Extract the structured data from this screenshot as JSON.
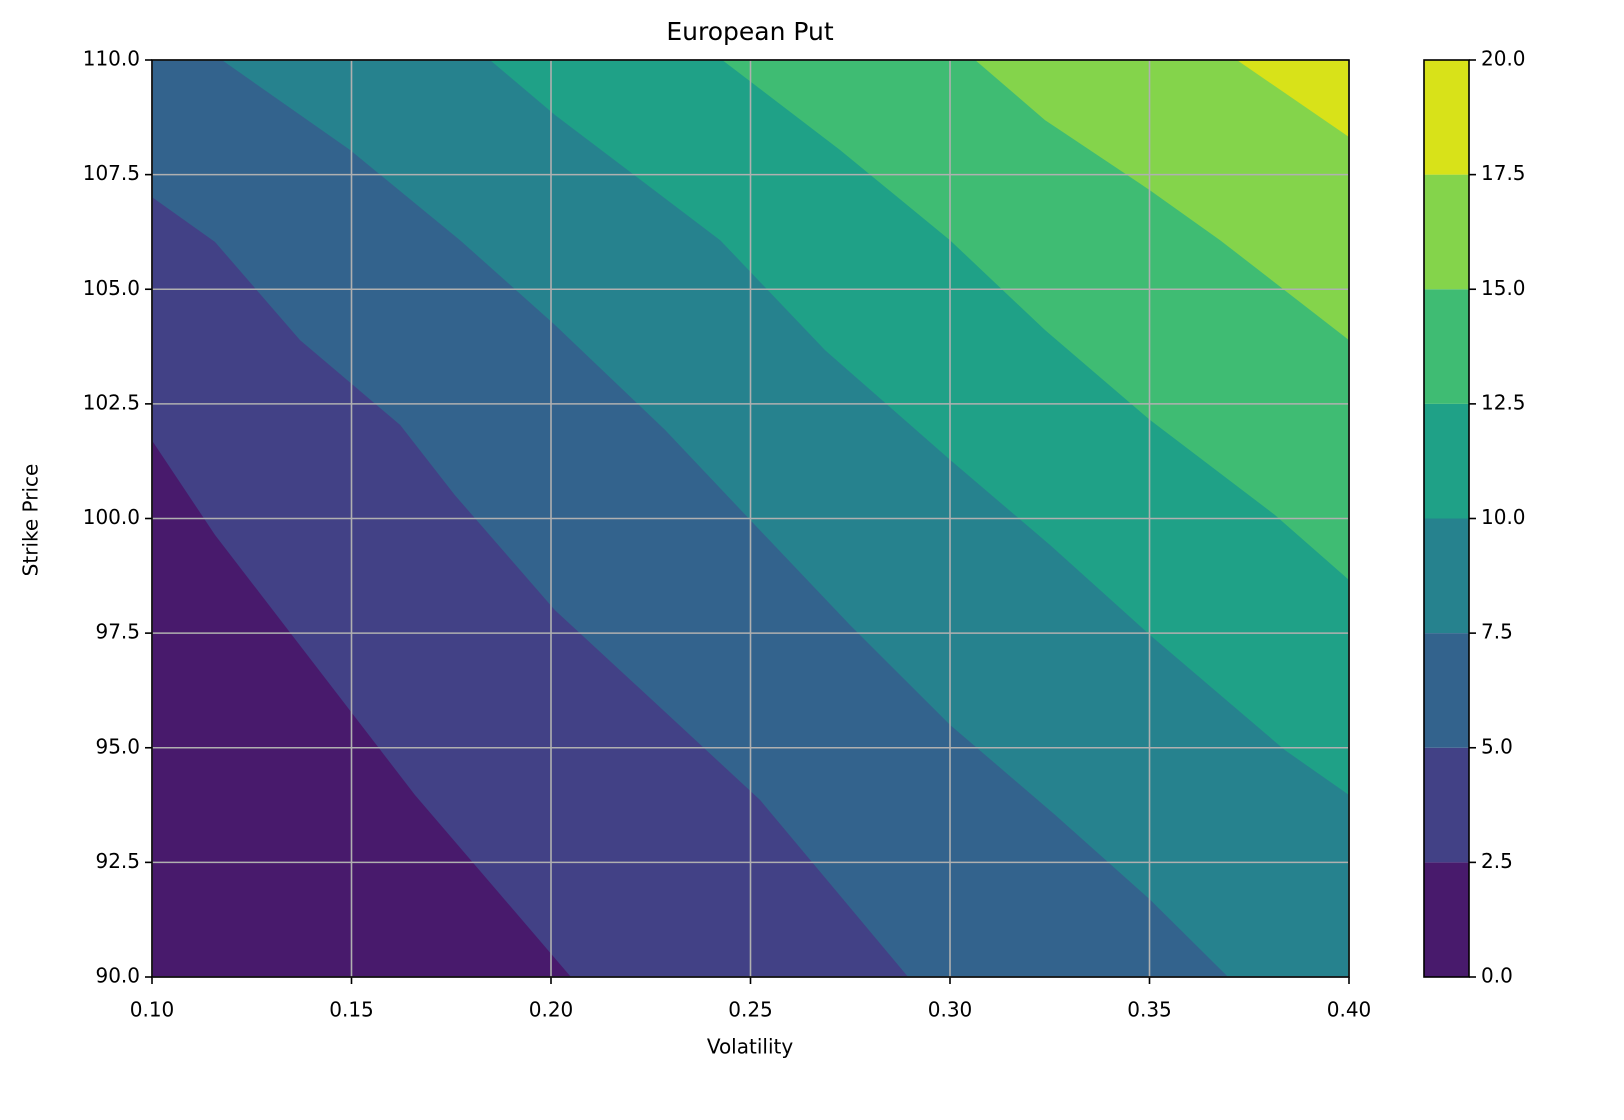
{
  "chart_data": {
    "type": "contourf",
    "title": "European Put",
    "xlabel": "Volatility",
    "ylabel": "Strike Price",
    "xlim": [
      0.1,
      0.4
    ],
    "ylim": [
      90,
      110
    ],
    "xticks": [
      {
        "value": 0.1,
        "label": "0.10"
      },
      0.15,
      {
        "value": 0.2,
        "label": "0.20"
      },
      0.25,
      {
        "value": 0.3,
        "label": "0.30"
      },
      0.35,
      {
        "value": 0.4,
        "label": "0.40"
      }
    ],
    "yticks": [
      {
        "value": 90,
        "label": "90.0"
      },
      92.5,
      {
        "value": 95,
        "label": "95.0"
      },
      97.5,
      {
        "value": 100,
        "label": "100.0"
      },
      102.5,
      {
        "value": 105,
        "label": "105.0"
      },
      107.5,
      {
        "value": 110,
        "label": "110.0"
      }
    ],
    "grid": true,
    "levels": [
      0,
      2.5,
      5,
      7.5,
      10,
      12.5,
      15,
      17.5,
      20
    ],
    "colors": [
      "#481a6c",
      "#424186",
      "#33638d",
      "#26828e",
      "#1fa187",
      "#3fbc73",
      "#84d44b",
      "#d8e219"
    ],
    "cbar_ticks": [
      {
        "value": 0,
        "label": "0.0"
      },
      2.5,
      {
        "value": 5,
        "label": "5.0"
      },
      7.5,
      {
        "value": 10,
        "label": "10.0"
      },
      12.5,
      {
        "value": 15,
        "label": "15.0"
      },
      17.5,
      {
        "value": 20,
        "label": "20.0"
      }
    ],
    "contours": [
      {
        "level": 2.5,
        "x": [
          0.1,
          0.1158,
          0.1659,
          0.205
        ],
        "y": [
          101.7,
          99.64,
          93.97,
          90
        ]
      },
      {
        "level": 5,
        "x": [
          0.1,
          0.1158,
          0.1371,
          0.1622,
          0.1759,
          0.201,
          0.2286,
          0.2524,
          0.2895
        ],
        "y": [
          107.01,
          106.03,
          103.89,
          102.04,
          100.51,
          98.0,
          95.78,
          93.86,
          90
        ]
      },
      {
        "level": 7.5,
        "x": [
          0.1175,
          0.1496,
          0.1772,
          0.201,
          0.2286,
          0.2499,
          0.2749,
          0.3,
          0.3263,
          0.3501,
          0.3697
        ],
        "y": [
          110,
          108.04,
          106.07,
          104.22,
          101.93,
          99.97,
          97.68,
          95.5,
          93.54,
          91.69,
          90
        ]
      },
      {
        "level": 10,
        "x": [
          0.1847,
          0.201,
          0.2424,
          0.2687,
          0.3,
          0.3251,
          0.3501,
          0.3839,
          0.4
        ],
        "y": [
          110,
          108.8,
          106.07,
          103.67,
          101.28,
          99.42,
          97.46,
          94.95,
          93.97
        ]
      },
      {
        "level": 12.5,
        "x": [
          0.2429,
          0.2724,
          0.3,
          0.3238,
          0.3501,
          0.3814,
          0.4
        ],
        "y": [
          110,
          108.04,
          106.07,
          104.11,
          102.15,
          100.08,
          98.66
        ]
      },
      {
        "level": 15,
        "x": [
          0.3063,
          0.3238,
          0.3501,
          0.3677,
          0.4
        ],
        "y": [
          110,
          108.69,
          107.16,
          106.07,
          103.89
        ]
      },
      {
        "level": 17.5,
        "x": [
          0.3719,
          0.4
        ],
        "y": [
          110,
          108.32
        ]
      }
    ]
  }
}
